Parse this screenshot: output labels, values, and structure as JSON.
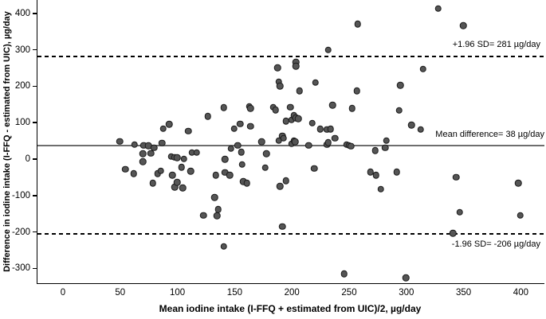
{
  "chart_data": {
    "type": "scatter",
    "title": "",
    "xlabel": "Mean iodine intake (I-FFQ + estimated from UIC)/2, µg/day",
    "ylabel": "Difference in iodine intake (I-FFQ - estimated from UIC), µg/day",
    "xlim": [
      -23,
      422
    ],
    "ylim": [
      -341,
      437
    ],
    "grid": false,
    "legend": "none",
    "x_ticks": [
      0,
      50,
      100,
      150,
      200,
      250,
      300,
      350,
      400
    ],
    "y_ticks": [
      400,
      300,
      200,
      100,
      0,
      -100,
      -200,
      -300
    ],
    "reference_lines": [
      {
        "name": "upper-loa",
        "value": 281,
        "style": "dashed",
        "label": "+1.96 SD= 281 µg/day"
      },
      {
        "name": "mean",
        "value": 38,
        "style": "solid",
        "label": "Mean difference= 38 µg/day"
      },
      {
        "name": "lower-loa",
        "value": -206,
        "style": "dashed",
        "label": "-1.96 SD= -206 µg/day"
      }
    ],
    "points": [
      [
        50,
        49
      ],
      [
        55,
        -28
      ],
      [
        62,
        -40
      ],
      [
        63,
        40
      ],
      [
        70,
        15
      ],
      [
        70,
        -7
      ],
      [
        71,
        38
      ],
      [
        75,
        37
      ],
      [
        77,
        16
      ],
      [
        79,
        -66
      ],
      [
        80,
        31
      ],
      [
        83,
        -40
      ],
      [
        86,
        -32
      ],
      [
        87,
        44
      ],
      [
        88,
        84
      ],
      [
        93,
        95
      ],
      [
        95,
        7
      ],
      [
        96,
        -44
      ],
      [
        98,
        5
      ],
      [
        98,
        -77
      ],
      [
        100,
        4
      ],
      [
        100,
        -64
      ],
      [
        104,
        -22
      ],
      [
        105,
        -79
      ],
      [
        106,
        1
      ],
      [
        110,
        77
      ],
      [
        112,
        -33
      ],
      [
        113,
        18
      ],
      [
        117,
        18
      ],
      [
        123,
        -154
      ],
      [
        127,
        117
      ],
      [
        133,
        -105
      ],
      [
        134,
        -44
      ],
      [
        135,
        -156
      ],
      [
        136,
        -138
      ],
      [
        141,
        141
      ],
      [
        141,
        -240
      ],
      [
        142,
        0
      ],
      [
        142,
        -37
      ],
      [
        146,
        -44
      ],
      [
        147,
        29
      ],
      [
        150,
        84
      ],
      [
        153,
        38
      ],
      [
        155,
        97
      ],
      [
        156,
        19
      ],
      [
        157,
        -15
      ],
      [
        158,
        -62
      ],
      [
        161,
        -66
      ],
      [
        163,
        145
      ],
      [
        164,
        139
      ],
      [
        164,
        90
      ],
      [
        174,
        48
      ],
      [
        177,
        -24
      ],
      [
        178,
        15
      ],
      [
        184,
        143
      ],
      [
        186,
        135
      ],
      [
        188,
        251
      ],
      [
        189,
        212
      ],
      [
        189,
        51
      ],
      [
        190,
        200
      ],
      [
        190,
        -75
      ],
      [
        192,
        64
      ],
      [
        192,
        -185
      ],
      [
        193,
        57
      ],
      [
        195,
        104
      ],
      [
        195,
        -59
      ],
      [
        199,
        143
      ],
      [
        200,
        108
      ],
      [
        200,
        42
      ],
      [
        202,
        120
      ],
      [
        202,
        51
      ],
      [
        203,
        48
      ],
      [
        204,
        113
      ],
      [
        204,
        266
      ],
      [
        204,
        255
      ],
      [
        206,
        111
      ],
      [
        207,
        187
      ],
      [
        215,
        38
      ],
      [
        218,
        99
      ],
      [
        220,
        -26
      ],
      [
        221,
        210
      ],
      [
        225,
        82
      ],
      [
        231,
        81
      ],
      [
        231,
        40
      ],
      [
        232,
        300
      ],
      [
        232,
        45
      ],
      [
        234,
        82
      ],
      [
        236,
        148
      ],
      [
        238,
        57
      ],
      [
        246,
        -315
      ],
      [
        248,
        40
      ],
      [
        250,
        38
      ],
      [
        252,
        35
      ],
      [
        253,
        139
      ],
      [
        257,
        187
      ],
      [
        258,
        371
      ],
      [
        269,
        -35
      ],
      [
        273,
        23
      ],
      [
        274,
        -44
      ],
      [
        278,
        -82
      ],
      [
        282,
        31
      ],
      [
        283,
        51
      ],
      [
        292,
        -35
      ],
      [
        294,
        134
      ],
      [
        295,
        202
      ],
      [
        300,
        -326
      ],
      [
        305,
        93
      ],
      [
        313,
        81
      ],
      [
        315,
        247
      ],
      [
        328,
        413
      ],
      [
        341,
        -204
      ],
      [
        344,
        -50
      ],
      [
        347,
        -146
      ],
      [
        350,
        366
      ],
      [
        398,
        -66
      ],
      [
        400,
        -154
      ]
    ]
  },
  "colors": {
    "background": "#ffffff",
    "axis": "#000000",
    "point_fill": "#555555",
    "point_border": "#1c1c1c",
    "mean_line": "#6e6e6e",
    "sd_line": "#000000"
  }
}
